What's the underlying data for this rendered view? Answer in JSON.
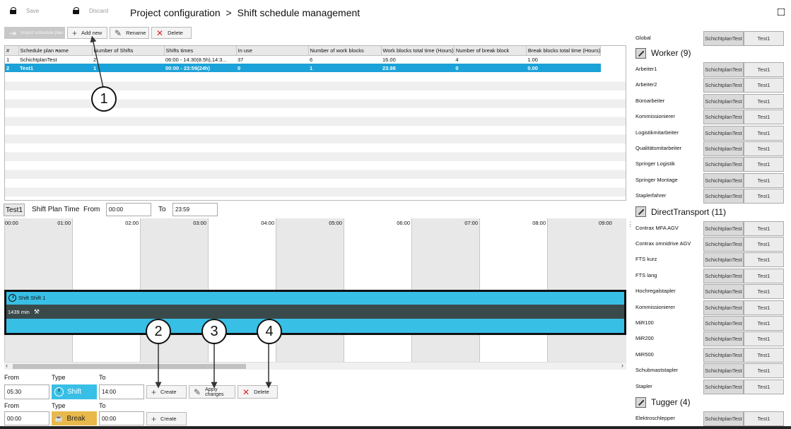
{
  "toolbar": {
    "save": "Save",
    "discard": "Discard"
  },
  "breadcrumb": {
    "root": "Project configuration",
    "separator": ">",
    "page": "Shift schedule management"
  },
  "actions": {
    "import": "Import schedule plan",
    "add": "Add new",
    "rename": "Rename",
    "delete": "Delete"
  },
  "table": {
    "columns": [
      "#",
      "Schedule plan name",
      "Number of Shifts",
      "Shifts times",
      "In use",
      "Number of work blocks",
      "Work blocks total time (Hours)",
      "Number of break block",
      "Break blocks total time (Hours)"
    ],
    "rows": [
      [
        "1",
        "SchichtplanTest",
        "2",
        "06:00 - 14:30(8.5h),14:3...",
        "37",
        "6",
        "16.00",
        "4",
        "1.00"
      ],
      [
        "2",
        "Test1",
        "1",
        "00:00 - 23:59(24h)",
        "0",
        "1",
        "23.98",
        "0",
        "0.00"
      ]
    ]
  },
  "shift_plan": {
    "name": "Test1",
    "time_label": "Shift Plan Time",
    "from_label": "From",
    "from": "00:00",
    "to_label": "To",
    "to": "23:59"
  },
  "timeline": {
    "hours": [
      "00:00",
      "01:00",
      "02:00",
      "03:00",
      "04:00",
      "05:00",
      "06:00",
      "07:00",
      "08:00",
      "09:00"
    ],
    "block_title": "Shift Shift 1",
    "block_duration": "1439 min"
  },
  "editor": {
    "from_label": "From",
    "type_label": "Type",
    "to_label": "To",
    "shift": {
      "from": "05:30",
      "type": "Shift",
      "to": "14:00"
    },
    "break": {
      "from": "00:00",
      "type": "Break",
      "to": "00:00"
    },
    "create": "Create",
    "apply": "Apply changes",
    "delete": "Delete"
  },
  "callouts": [
    "1",
    "2",
    "3",
    "4"
  ],
  "right_panel": {
    "global": {
      "name": "Global",
      "v1": "SchichtplanTest",
      "v2": "Test1"
    },
    "groups": [
      {
        "title": "Worker (9)",
        "items": [
          "Arbeiter1",
          "Arbeiter2",
          "Büroarbeiter",
          "Kommissionierer",
          "Logistikmitarbeiter",
          "Qualitätsmitarbeiter",
          "Springer Logistik",
          "Springer Montage",
          "Staplerfahrer"
        ]
      },
      {
        "title": "DirectTransport (11)",
        "items": [
          "Contrax MFA AGV",
          "Contrax omnidrive AGV",
          "FTS kurz",
          "FTS lang",
          "Hochregalstapler",
          "Kommissionierer",
          "MiR100",
          "MiR200",
          "MiR500",
          "Schubmaststapler",
          "Stapler"
        ]
      },
      {
        "title": "Tugger (4)",
        "items": [
          "Elektroschlepper"
        ]
      }
    ],
    "v1": "SchichtplanTest",
    "v2": "Test1"
  },
  "colors": {
    "accent": "#1ba2d8",
    "shift": "#38bfe6",
    "break": "#e8b94a",
    "dark": "#3a4a4a"
  }
}
